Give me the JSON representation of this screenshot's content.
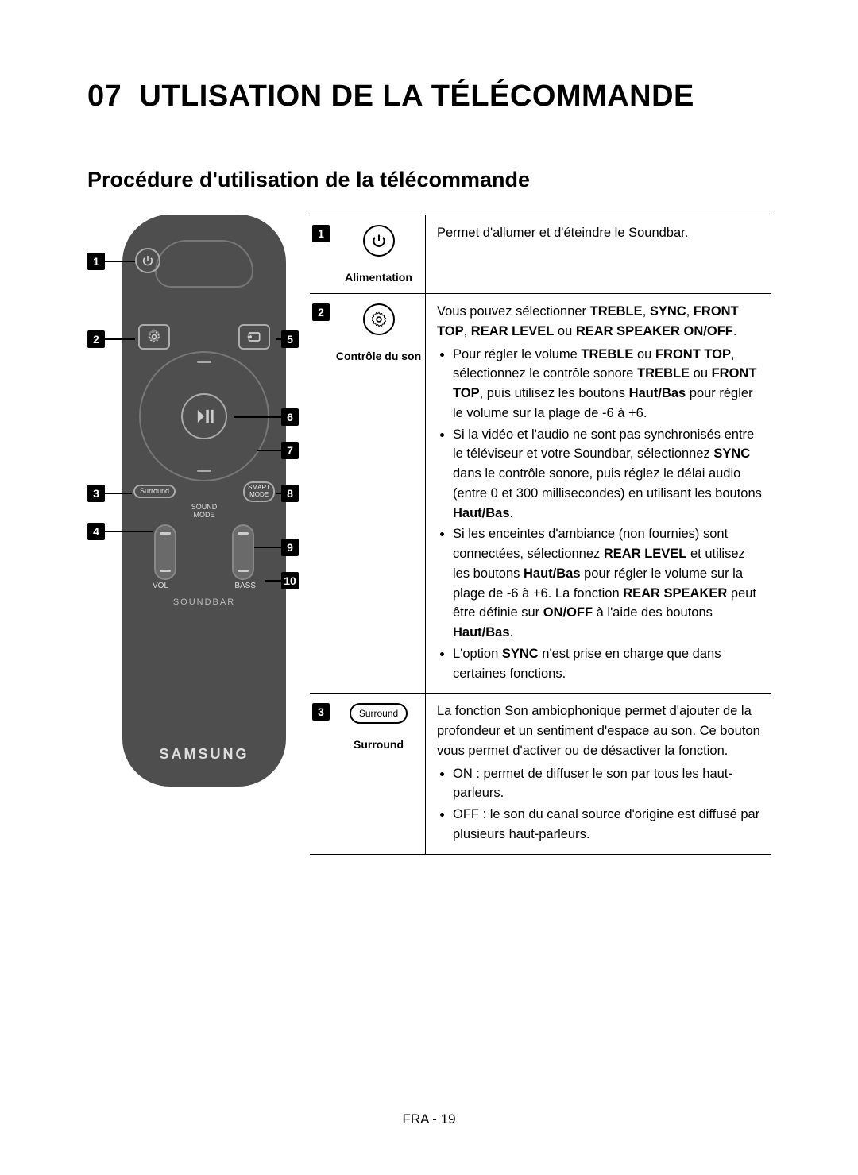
{
  "page": {
    "section_number": "07",
    "title": "UTLISATION DE LA TÉLÉCOMMANDE",
    "subtitle": "Procédure d'utilisation de la télécommande",
    "footer": "FRA - 19"
  },
  "remote": {
    "body_color": "#4e4e4e",
    "outline_color": "#777777",
    "text_color": "#dddddd",
    "buttons": {
      "power": {
        "callout": "1"
      },
      "sound_control": {
        "callout": "2"
      },
      "source": {
        "callout": "5"
      },
      "play_pause": {
        "callout": "6"
      },
      "dpad_bottom": {
        "callout": "7"
      },
      "surround": {
        "label": "Surround",
        "callout": "3"
      },
      "smart_mode": {
        "label_line1": "SMART",
        "label_line2": "MODE",
        "callout": "8"
      },
      "sound_mode": {
        "label_line1": "SOUND",
        "label_line2": "MODE",
        "callout": "4"
      },
      "vol_rocker": {
        "label": "VOL",
        "callout": "9"
      },
      "bass_rocker": {
        "label": "BASS",
        "callout": "10"
      }
    },
    "soundbar_label": "SOUNDBAR",
    "brand": "SAMSUNG"
  },
  "table": {
    "rows": [
      {
        "num": "1",
        "icon_type": "power",
        "label": "Alimentation",
        "desc_intro": "Permet d'allumer et d'éteindre le Soundbar.",
        "bullets": []
      },
      {
        "num": "2",
        "icon_type": "gear",
        "label": "Contrôle du son",
        "desc_intro_html": "Vous pouvez sélectionner <b>TREBLE</b>, <b>SYNC</b>, <b>FRONT TOP</b>, <b>REAR LEVEL</b> ou <b>REAR SPEAKER ON/OFF</b>.",
        "bullets_html": [
          "Pour régler le volume <b>TREBLE</b> ou <b>FRONT TOP</b>, sélectionnez le contrôle sonore <b>TREBLE</b> ou <b>FRONT TOP</b>, puis utilisez les boutons <b>Haut/Bas</b> pour régler le volume sur la plage de -6 à +6.",
          "Si la vidéo et l'audio ne sont pas synchronisés entre le téléviseur et votre Soundbar, sélectionnez <b>SYNC</b> dans le contrôle sonore, puis réglez le délai audio (entre 0 et 300 millisecondes) en utilisant les boutons <b>Haut/Bas</b>.",
          "Si les enceintes d'ambiance (non fournies) sont connectées, sélectionnez <b>REAR LEVEL</b> et utilisez les boutons <b>Haut/Bas</b> pour régler le volume sur la plage de -6 à +6. La fonction <b>REAR SPEAKER</b> peut être définie sur <b>ON/OFF</b> à l'aide des boutons <b>Haut/Bas</b>.",
          "L'option <b>SYNC</b> n'est prise en charge que dans certaines fonctions."
        ]
      },
      {
        "num": "3",
        "icon_type": "pill",
        "icon_pill_text": "Surround",
        "label": "Surround",
        "desc_intro": "La fonction Son ambiophonique permet d'ajouter de la profondeur et un sentiment d'espace au son. Ce bouton vous permet d'activer ou de désactiver la fonction.",
        "bullets": [
          "ON : permet de diffuser le son par tous les haut-parleurs.",
          "OFF : le son du canal source d'origine est diffusé par plusieurs haut-parleurs."
        ]
      }
    ]
  }
}
